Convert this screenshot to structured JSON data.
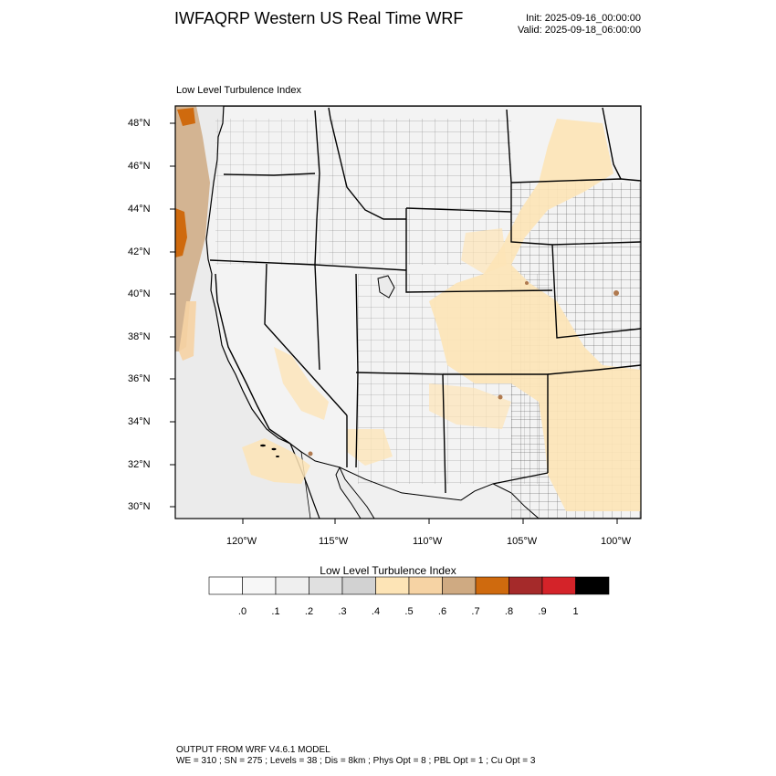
{
  "header": {
    "title": "IWFAQRP Western US Real Time WRF",
    "init": "Init: 2025-09-16_00:00:00",
    "valid": "Valid: 2025-09-18_06:00:00"
  },
  "panel": {
    "subtitle": "Low Level Turbulence Index"
  },
  "axes": {
    "lat_labels": [
      "48°N",
      "46°N",
      "44°N",
      "42°N",
      "40°N",
      "38°N",
      "36°N",
      "34°N",
      "32°N",
      "30°N"
    ],
    "lon_labels": [
      "120°W",
      "115°W",
      "110°W",
      "105°W",
      "100°W"
    ]
  },
  "colorbar": {
    "title": "Low Level Turbulence Index",
    "tick_labels": [
      ".0",
      ".1",
      ".2",
      ".3",
      ".4",
      ".5",
      ".6",
      ".7",
      ".8",
      ".9",
      "1"
    ],
    "colors": [
      "#ffffff",
      "#f7f7f7",
      "#efefef",
      "#e0e0e0",
      "#d2d2d2",
      "#fde4b6",
      "#f6d3a4",
      "#cfaa82",
      "#cf6a0e",
      "#a52a2a",
      "#d42329",
      "#000000"
    ]
  },
  "map": {
    "land_color": "#f2f2f2",
    "ocean_color": "#ececec",
    "boundary_color": "#000000",
    "county_color": "#333333"
  },
  "footer": {
    "line1": "OUTPUT FROM WRF V4.6.1 MODEL",
    "line2": "WE = 310 ; SN = 275 ; Levels = 38 ; Dis = 8km ; Phys Opt = 8 ; PBL Opt = 1 ; Cu Opt = 3"
  }
}
